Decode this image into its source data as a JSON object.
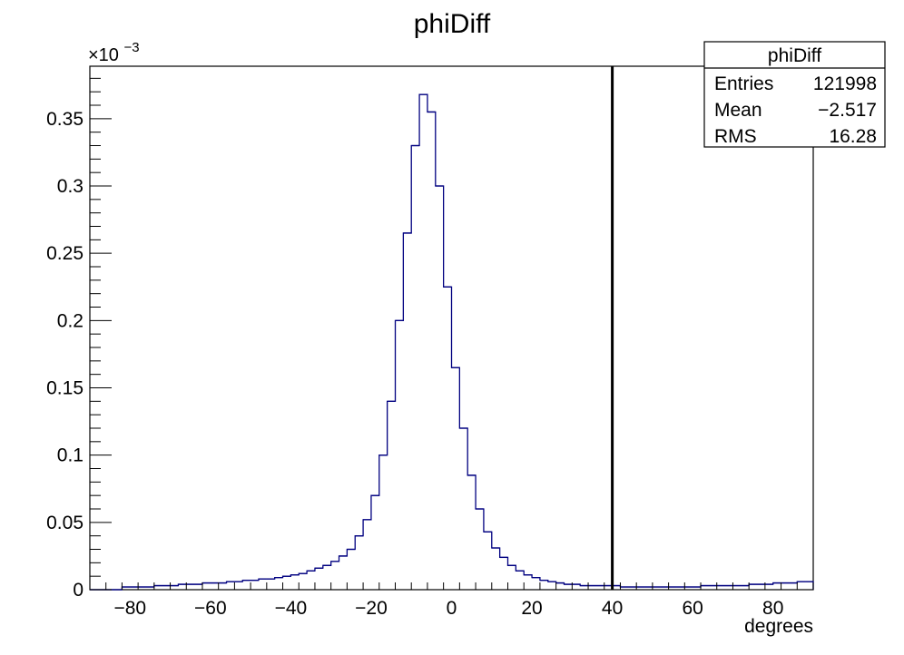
{
  "chart_data": {
    "type": "histogram",
    "title": "phiDiff",
    "xlabel": "degrees",
    "ylabel": "",
    "y_exponent_label": "×10",
    "y_exponent_power": "−3",
    "xlim": [
      -90,
      90
    ],
    "ylim": [
      0,
      0.389
    ],
    "bin_width": 2,
    "x_ticks": [
      -80,
      -60,
      -40,
      -20,
      0,
      20,
      40,
      60,
      80
    ],
    "x_tick_labels": [
      "−80",
      "−60",
      "−40",
      "−20",
      "0",
      "20",
      "40",
      "60",
      "80"
    ],
    "y_ticks": [
      0,
      0.05,
      0.1,
      0.15,
      0.2,
      0.25,
      0.3,
      0.35
    ],
    "y_tick_labels": [
      "0",
      "0.05",
      "0.1",
      "0.15",
      "0.2",
      "0.25",
      "0.3",
      "0.35"
    ],
    "grid": false,
    "legend": "none",
    "line_color": "#000080",
    "cut_line": {
      "x": 40,
      "color": "#000000"
    },
    "bins": {
      "x_start": -90,
      "values": [
        0.0,
        0.0,
        0.0,
        0.0,
        0.002,
        0.002,
        0.002,
        0.002,
        0.003,
        0.003,
        0.003,
        0.004,
        0.004,
        0.004,
        0.005,
        0.005,
        0.005,
        0.006,
        0.006,
        0.007,
        0.007,
        0.008,
        0.008,
        0.009,
        0.01,
        0.011,
        0.012,
        0.014,
        0.016,
        0.018,
        0.021,
        0.025,
        0.03,
        0.04,
        0.052,
        0.07,
        0.1,
        0.14,
        0.2,
        0.265,
        0.33,
        0.368,
        0.355,
        0.3,
        0.225,
        0.165,
        0.12,
        0.085,
        0.06,
        0.043,
        0.031,
        0.024,
        0.018,
        0.014,
        0.011,
        0.009,
        0.007,
        0.006,
        0.005,
        0.004,
        0.004,
        0.003,
        0.003,
        0.003,
        0.003,
        0.003,
        0.002,
        0.002,
        0.002,
        0.002,
        0.002,
        0.002,
        0.002,
        0.002,
        0.002,
        0.002,
        0.003,
        0.003,
        0.003,
        0.003,
        0.003,
        0.003,
        0.004,
        0.004,
        0.004,
        0.005,
        0.005,
        0.005,
        0.006,
        0.006
      ]
    },
    "stats_box": {
      "title": "phiDiff",
      "rows": [
        {
          "label": "Entries",
          "value": "121998"
        },
        {
          "label": "Mean",
          "value": "−2.517"
        },
        {
          "label": "RMS",
          "value": "16.28"
        }
      ]
    }
  }
}
